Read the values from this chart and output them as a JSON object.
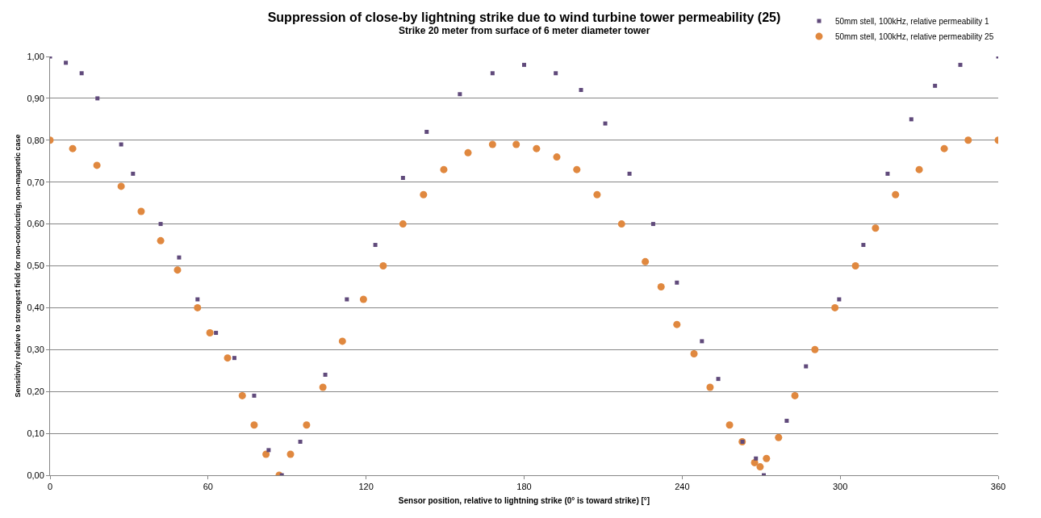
{
  "chart_data": {
    "type": "scatter",
    "title": "Suppression of close-by lightning strike due to wind turbine tower permeability (25)",
    "subtitle": "Strike 20 meter from surface of 6 meter diameter tower",
    "xlabel": "Sensor position, relative to lightning strike (0° is toward strike) [°]",
    "ylabel": "Sensitivity relative to strongest field for non-conducting, non-magnetic case",
    "xlim": [
      0,
      360
    ],
    "xticks": [
      0,
      60,
      120,
      180,
      240,
      300,
      360
    ],
    "ylim": [
      0,
      1
    ],
    "yticks": [
      {
        "value": 0,
        "label": "0,00"
      },
      {
        "value": 0.1,
        "label": "0,10"
      },
      {
        "value": 0.2,
        "label": "0,20"
      },
      {
        "value": 0.3,
        "label": "0,30"
      },
      {
        "value": 0.4,
        "label": "0,40"
      },
      {
        "value": 0.5,
        "label": "0,50"
      },
      {
        "value": 0.6,
        "label": "0,60"
      },
      {
        "value": 0.7,
        "label": "0,70"
      },
      {
        "value": 0.8,
        "label": "0,80"
      },
      {
        "value": 0.9,
        "label": "0,90"
      },
      {
        "value": 1,
        "label": "1,00"
      }
    ],
    "grid": "y",
    "legend": "top right",
    "series": [
      {
        "name": "50mm stell, 100kHz, relative permeability 1",
        "color": "#604a7b",
        "marker": "square",
        "x": [
          0,
          6,
          12,
          18,
          27,
          31.5,
          42,
          49,
          56,
          63,
          70,
          77.5,
          83,
          88,
          95,
          104.5,
          112.7,
          123.5,
          134,
          143,
          155.6,
          168,
          180,
          192,
          201.6,
          210.8,
          220,
          229,
          238,
          247.5,
          253.7,
          262.9,
          268,
          271,
          279.7,
          287,
          299.6,
          308.8,
          318,
          327,
          336,
          345.6,
          360
        ],
        "values": [
          1.0,
          0.985,
          0.96,
          0.9,
          0.79,
          0.72,
          0.6,
          0.52,
          0.42,
          0.34,
          0.28,
          0.19,
          0.06,
          0.0,
          0.08,
          0.24,
          0.42,
          0.55,
          0.71,
          0.82,
          0.91,
          0.96,
          0.98,
          0.96,
          0.92,
          0.84,
          0.72,
          0.6,
          0.46,
          0.32,
          0.23,
          0.08,
          0.04,
          0.0,
          0.13,
          0.26,
          0.42,
          0.55,
          0.72,
          0.85,
          0.93,
          0.98,
          1.0
        ]
      },
      {
        "name": "50mm stell, 100kHz, relative permeability 25",
        "color": "#e0883f",
        "marker": "circle",
        "x": [
          0,
          8.6,
          17.8,
          27,
          34.6,
          42,
          48.4,
          56,
          60.7,
          67.4,
          73,
          77.5,
          82,
          87,
          91.3,
          97.4,
          103.6,
          111,
          119,
          126.5,
          134,
          141.8,
          149.5,
          158.7,
          168,
          177,
          184.7,
          192.4,
          200,
          207.7,
          217,
          226,
          232,
          238,
          244.5,
          250.6,
          258,
          262.8,
          267.5,
          269.6,
          272,
          276.6,
          282.8,
          290.4,
          298,
          305.8,
          313.4,
          321,
          330,
          339.5,
          348.6,
          360
        ],
        "values": [
          0.8,
          0.78,
          0.74,
          0.69,
          0.63,
          0.56,
          0.49,
          0.4,
          0.34,
          0.28,
          0.19,
          0.12,
          0.05,
          0.0,
          0.05,
          0.12,
          0.21,
          0.32,
          0.42,
          0.5,
          0.6,
          0.67,
          0.73,
          0.77,
          0.79,
          0.79,
          0.78,
          0.76,
          0.73,
          0.67,
          0.6,
          0.51,
          0.45,
          0.36,
          0.29,
          0.21,
          0.12,
          0.08,
          0.03,
          0.02,
          0.04,
          0.09,
          0.19,
          0.3,
          0.4,
          0.5,
          0.59,
          0.67,
          0.73,
          0.78,
          0.8,
          0.8
        ]
      }
    ]
  }
}
